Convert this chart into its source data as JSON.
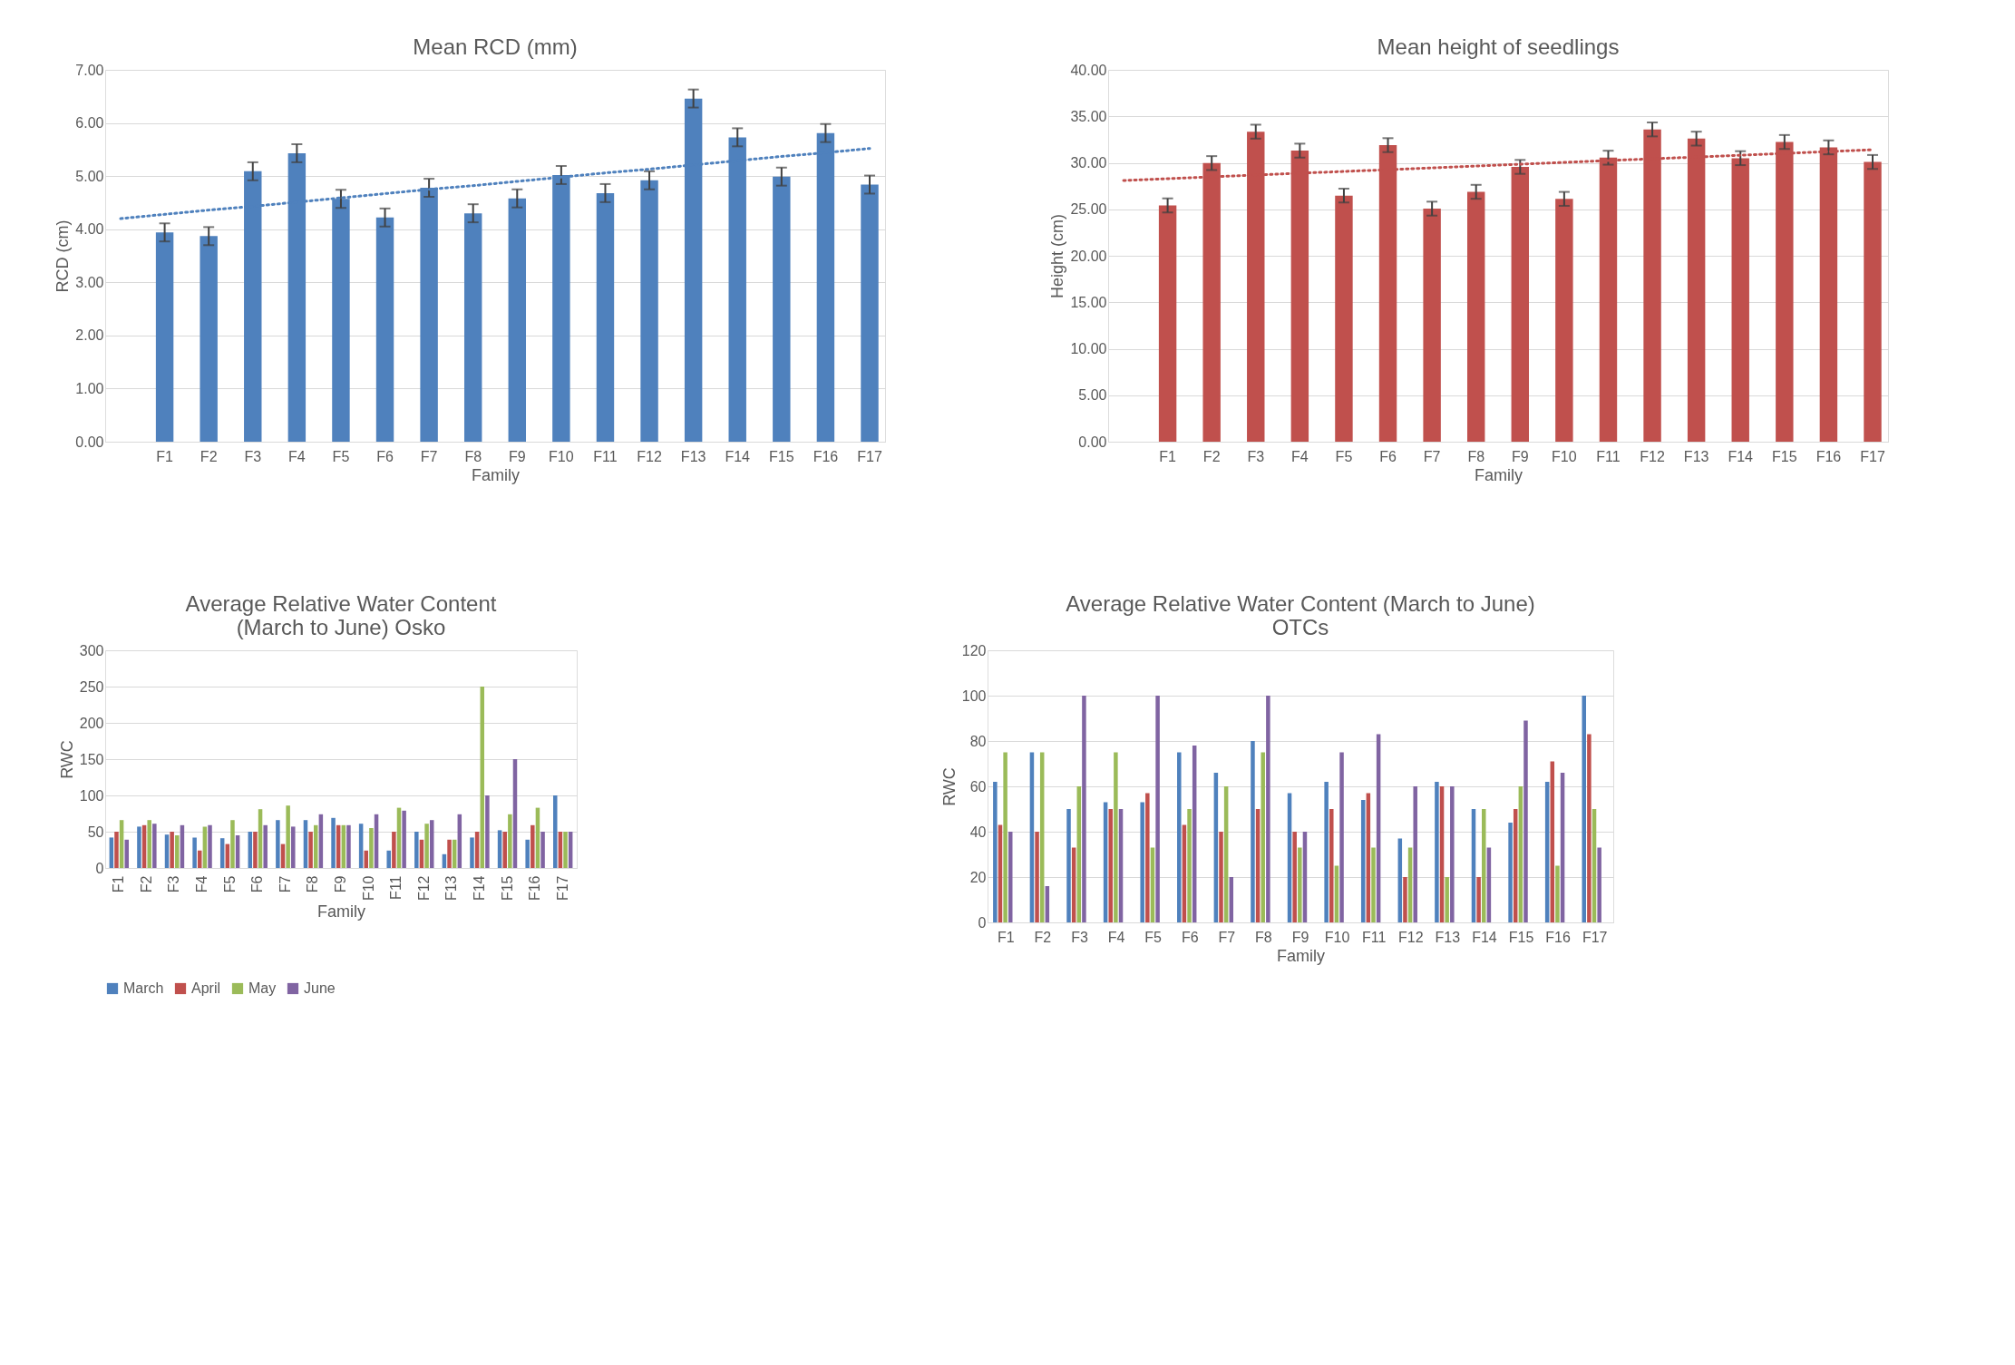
{
  "chart_data": [
    {
      "type": "bar",
      "title": "Mean RCD (mm)",
      "xlabel": "Family",
      "ylabel": "RCD (cm)",
      "categories": [
        null,
        "F1",
        "F2",
        "F3",
        "F4",
        "F5",
        "F6",
        "F7",
        "F8",
        "F9",
        "F10",
        "F11",
        "F12",
        "F13",
        "F14",
        "F15",
        "F16",
        "F17"
      ],
      "series": [
        {
          "type": "bar",
          "color": "#4f81bd",
          "values": [
            null,
            3.94,
            3.87,
            5.09,
            5.43,
            4.57,
            4.22,
            4.78,
            4.3,
            4.58,
            5.02,
            4.68,
            4.92,
            6.46,
            5.73,
            4.99,
            5.81,
            4.84
          ],
          "errors": [
            null,
            0.17,
            0.17,
            0.17,
            0.17,
            0.17,
            0.17,
            0.17,
            0.17,
            0.17,
            0.17,
            0.17,
            0.17,
            0.17,
            0.17,
            0.17,
            0.17,
            0.17
          ]
        },
        {
          "type": "line",
          "line_style": "dotted",
          "color": "#4f81bd",
          "values": [
            4.2,
            4.28,
            4.36,
            4.43,
            4.51,
            4.59,
            4.67,
            4.75,
            4.82,
            4.9,
            4.98,
            5.06,
            5.13,
            5.21,
            5.29,
            5.37,
            5.44,
            5.52
          ]
        }
      ],
      "ylim": [
        0,
        7
      ],
      "yticks": [
        {
          "value": 0,
          "label": "0.00"
        },
        {
          "value": 1,
          "label": "1.00"
        },
        {
          "value": 2,
          "label": "2.00"
        },
        {
          "value": 3,
          "label": "3.00"
        },
        {
          "value": 4,
          "label": "4.00"
        },
        {
          "value": 5,
          "label": "5.00"
        },
        {
          "value": 6,
          "label": "6.00"
        },
        {
          "value": 7,
          "label": "7.00"
        }
      ],
      "grid": "y",
      "legend": false
    },
    {
      "type": "bar",
      "title": "Mean height of seedlings",
      "xlabel": "Family",
      "ylabel": "Height (cm)",
      "categories": [
        null,
        "F1",
        "F2",
        "F3",
        "F4",
        "F5",
        "F6",
        "F7",
        "F8",
        "F9",
        "F10",
        "F11",
        "F12",
        "F13",
        "F14",
        "F15",
        "F16",
        "F17"
      ],
      "series": [
        {
          "type": "bar",
          "color": "#c0504d",
          "values": [
            null,
            25.42,
            29.97,
            33.35,
            31.31,
            26.47,
            31.9,
            25.07,
            26.88,
            29.56,
            26.12,
            30.55,
            33.59,
            32.6,
            30.5,
            32.24,
            31.66,
            30.09
          ],
          "errors": [
            null,
            0.75,
            0.75,
            0.75,
            0.75,
            0.75,
            0.75,
            0.75,
            0.75,
            0.75,
            0.75,
            0.75,
            0.75,
            0.75,
            0.75,
            0.75,
            0.75,
            0.75
          ]
        },
        {
          "type": "line",
          "line_style": "dotted",
          "color": "#c0504d",
          "values": [
            28.1,
            28.29,
            28.49,
            28.68,
            28.88,
            29.07,
            29.26,
            29.46,
            29.65,
            29.85,
            30.04,
            30.24,
            30.43,
            30.62,
            30.82,
            31.01,
            31.21,
            31.4
          ]
        }
      ],
      "ylim": [
        0,
        40
      ],
      "yticks": [
        {
          "value": 0,
          "label": "0.00"
        },
        {
          "value": 5,
          "label": "5.00"
        },
        {
          "value": 10,
          "label": "10.00"
        },
        {
          "value": 15,
          "label": "15.00"
        },
        {
          "value": 20,
          "label": "20.00"
        },
        {
          "value": 25,
          "label": "25.00"
        },
        {
          "value": 30,
          "label": "30.00"
        },
        {
          "value": 35,
          "label": "35.00"
        },
        {
          "value": 40,
          "label": "40.00"
        }
      ],
      "grid": "y",
      "legend": false
    },
    {
      "type": "bar",
      "title": "Average Relative Water Content (March to June) Osko",
      "xlabel": "Family",
      "ylabel": "RWC",
      "categories": [
        "F1",
        "F2",
        "F3",
        "F4",
        "F5",
        "F6",
        "F7",
        "F8",
        "F9",
        "F10",
        "F11",
        "F12",
        "F13",
        "F14",
        "F15",
        "F16",
        "F17"
      ],
      "series": [
        {
          "name": "March",
          "color": "#4f81bd",
          "values": [
            42,
            57,
            46,
            42,
            41,
            50,
            66,
            66,
            69,
            61,
            24,
            50,
            19,
            42,
            52,
            39,
            100
          ]
        },
        {
          "name": "April",
          "color": "#c0504d",
          "values": [
            50,
            59,
            50,
            24,
            33,
            50,
            33,
            50,
            59,
            24,
            50,
            39,
            39,
            50,
            50,
            59,
            50
          ]
        },
        {
          "name": "May",
          "color": "#9bbb59",
          "values": [
            66,
            66,
            45,
            57,
            66,
            81,
            86,
            59,
            59,
            55,
            83,
            61,
            39,
            250,
            74,
            83,
            50
          ]
        },
        {
          "name": "June",
          "color": "#8064a2",
          "values": [
            39,
            61,
            59,
            59,
            45,
            59,
            57,
            74,
            59,
            74,
            79,
            66,
            74,
            100,
            150,
            50,
            50
          ]
        }
      ],
      "ylim": [
        0,
        300
      ],
      "yticks": [
        0,
        50,
        100,
        150,
        200,
        250,
        300
      ],
      "grid": "y",
      "legend": "bottom"
    },
    {
      "type": "bar",
      "title": "Average Relative Water Content (March to June) OTCs",
      "xlabel": "Family",
      "ylabel": "RWC",
      "categories": [
        "F1",
        "F2",
        "F3",
        "F4",
        "F5",
        "F6",
        "F7",
        "F8",
        "F9",
        "F10",
        "F11",
        "F12",
        "F13",
        "F14",
        "F15",
        "F16",
        "F17"
      ],
      "series": [
        {
          "name": "March",
          "color": "#4f81bd",
          "values": [
            62,
            75,
            50,
            53,
            53,
            75,
            66,
            80,
            57,
            62,
            54,
            37,
            62,
            50,
            44,
            62,
            100
          ]
        },
        {
          "name": "April",
          "color": "#c0504d",
          "values": [
            43,
            40,
            33,
            50,
            57,
            43,
            40,
            50,
            40,
            50,
            57,
            20,
            60,
            20,
            50,
            71,
            83
          ]
        },
        {
          "name": "May",
          "color": "#9bbb59",
          "values": [
            75,
            75,
            60,
            75,
            33,
            50,
            60,
            75,
            33,
            25,
            33,
            33,
            20,
            50,
            60,
            25,
            50
          ]
        },
        {
          "name": "June",
          "color": "#8064a2",
          "values": [
            40,
            16,
            100,
            50,
            100,
            78,
            20,
            100,
            40,
            75,
            83,
            60,
            60,
            33,
            89,
            66,
            33
          ]
        }
      ],
      "ylim": [
        0,
        120
      ],
      "yticks": [
        0,
        20,
        40,
        60,
        80,
        100,
        120
      ],
      "grid": "y",
      "legend": "bottom"
    }
  ]
}
